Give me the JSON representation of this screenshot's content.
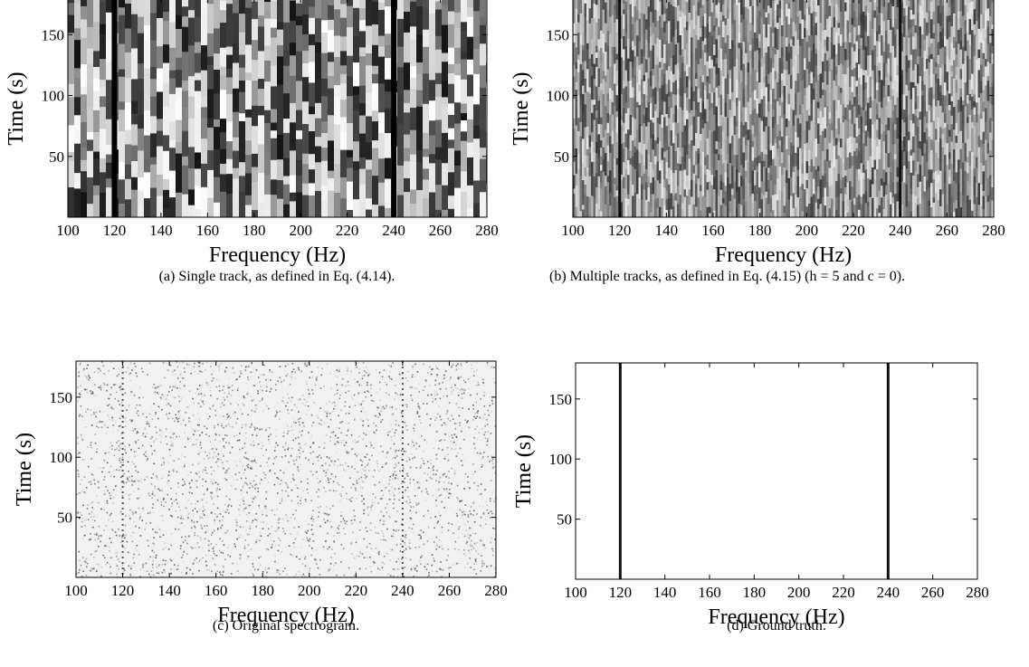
{
  "chart_data": [
    {
      "type": "spectrogram",
      "texture": "coarse",
      "xlabel": "Frequency (Hz)",
      "ylabel": "Time (s)",
      "xlim": [
        100,
        280
      ],
      "ylim": [
        0,
        180
      ],
      "xticks": [
        100,
        120,
        140,
        160,
        180,
        200,
        220,
        240,
        260,
        280
      ],
      "yticks": [
        50,
        100,
        150
      ],
      "tracks": [
        120,
        240
      ],
      "caption": "(a) Single track, as defined in Eq. (4.14)."
    },
    {
      "type": "spectrogram",
      "texture": "streaks",
      "xlabel": "Frequency (Hz)",
      "ylabel": "Time (s)",
      "xlim": [
        100,
        280
      ],
      "ylim": [
        0,
        180
      ],
      "xticks": [
        100,
        120,
        140,
        160,
        180,
        200,
        220,
        240,
        260,
        280
      ],
      "yticks": [
        50,
        100,
        150
      ],
      "tracks": [
        120,
        240
      ],
      "caption": "(b) Multiple tracks, as defined in Eq. (4.15) (h = 5 and c = 0)."
    },
    {
      "type": "spectrogram",
      "texture": "speckle",
      "xlabel": "Frequency (Hz)",
      "ylabel": "Time (s)",
      "xlim": [
        100,
        280
      ],
      "ylim": [
        0,
        180
      ],
      "xticks": [
        100,
        120,
        140,
        160,
        180,
        200,
        220,
        240,
        260,
        280
      ],
      "yticks": [
        50,
        100,
        150
      ],
      "tracks": [
        120,
        240
      ],
      "caption": "(c) Original spectrogram."
    },
    {
      "type": "spectrogram",
      "texture": "none",
      "xlabel": "Frequency (Hz)",
      "ylabel": "Time (s)",
      "xlim": [
        100,
        280
      ],
      "ylim": [
        0,
        180
      ],
      "xticks": [
        100,
        120,
        140,
        160,
        180,
        200,
        220,
        240,
        260,
        280
      ],
      "yticks": [
        50,
        100,
        150
      ],
      "tracks": [
        120,
        240
      ],
      "caption": "(d) Ground truth."
    }
  ]
}
